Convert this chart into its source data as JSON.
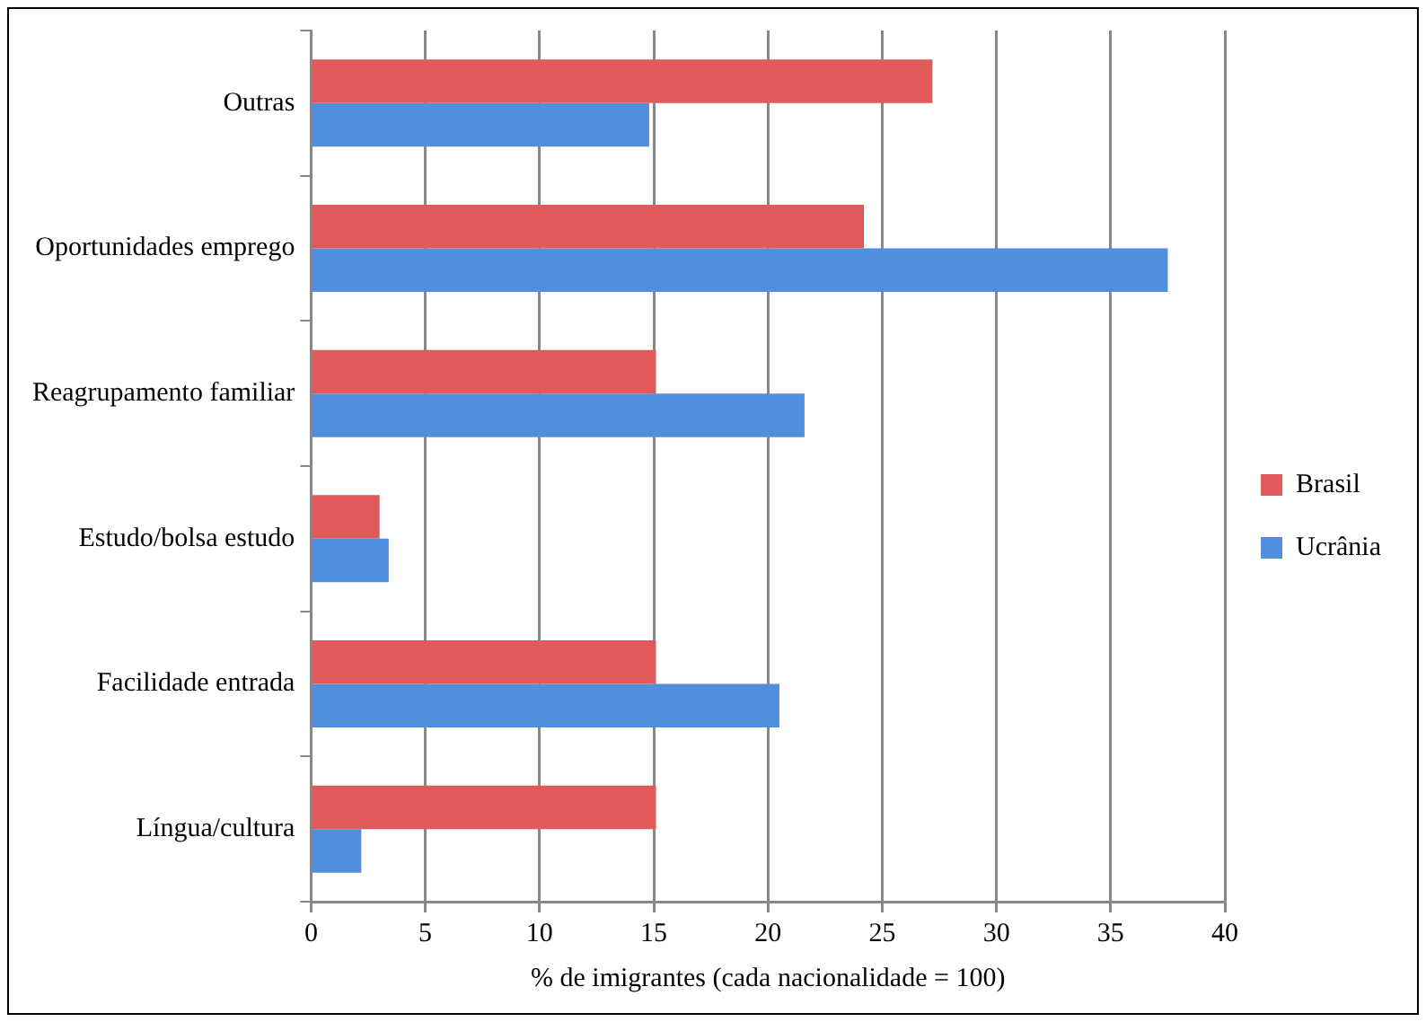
{
  "chart_data": {
    "type": "bar",
    "orientation": "horizontal",
    "xlabel": "% de imigrantes (cada nacionalidade = 100)",
    "categories": [
      "Outras",
      "Oportunidades emprego",
      "Reagrupamento familiar",
      "Estudo/bolsa estudo",
      "Facilidade entrada",
      "Língua/cultura"
    ],
    "series": [
      {
        "name": "Brasil",
        "color": "#e05a5a",
        "values": [
          27.2,
          24.2,
          15.1,
          3.0,
          15.1,
          15.1
        ]
      },
      {
        "name": "Ucrânia",
        "color": "#4f8fdc",
        "values": [
          14.8,
          37.5,
          21.6,
          3.4,
          20.5,
          2.2
        ]
      }
    ],
    "xlim": [
      0,
      40
    ],
    "xticks": [
      0,
      5,
      10,
      15,
      20,
      25,
      30,
      35,
      40
    ],
    "grid": "x",
    "legend": "right"
  }
}
